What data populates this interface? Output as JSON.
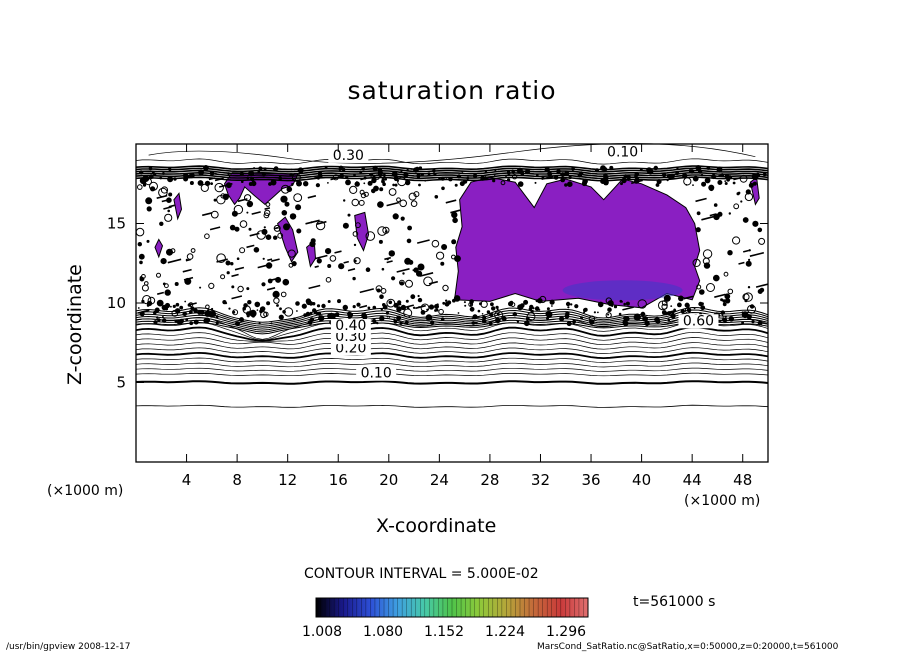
{
  "chart_data": {
    "type": "contour",
    "title": "saturation ratio",
    "xlabel": "X-coordinate",
    "ylabel": "Z-coordinate",
    "x_unit_label": "(×1000 m)",
    "xlim": [
      0,
      50
    ],
    "ylim": [
      0,
      20
    ],
    "x_ticks": [
      4,
      8,
      12,
      16,
      20,
      24,
      28,
      32,
      36,
      40,
      44,
      48
    ],
    "y_ticks": [
      5,
      10,
      15
    ],
    "contour_levels_labeled": [
      {
        "label": "0.10",
        "x": 19,
        "z": 5.3
      },
      {
        "label": "0.20",
        "x": 17,
        "z": 6.9
      },
      {
        "label": "0.30",
        "x": 17,
        "z": 7.6
      },
      {
        "label": "0.40",
        "x": 17,
        "z": 8.3
      },
      {
        "label": "0.10",
        "x": 38.5,
        "z": 19.2
      },
      {
        "label": "0.30",
        "x": 16.8,
        "z": 19.0
      },
      {
        "label": "0.60",
        "x": 44.5,
        "z": 8.6
      }
    ],
    "contour_interval": "CONTOUR INTERVAL = 5.000E-02",
    "colorbar": {
      "tick_labels": [
        "1.008",
        "1.080",
        "1.152",
        "1.224",
        "1.296"
      ],
      "range": [
        1.008,
        1.296
      ],
      "colors": [
        "#000000",
        "#1a1a8c",
        "#2d4fd6",
        "#3fa0e0",
        "#47c9a8",
        "#4fc34a",
        "#8ec93a",
        "#b5a63a",
        "#c46a3a",
        "#c93a3a",
        "#e07070"
      ]
    },
    "time": "t=561000 s",
    "supersaturated_color": "#8a1fc2"
  },
  "footer": {
    "left": "/usr/bin/gpview   2008-12-17",
    "right": "MarsCond_SatRatio.nc@SatRatio,x=0:50000,z=0:20000,t=561000"
  }
}
